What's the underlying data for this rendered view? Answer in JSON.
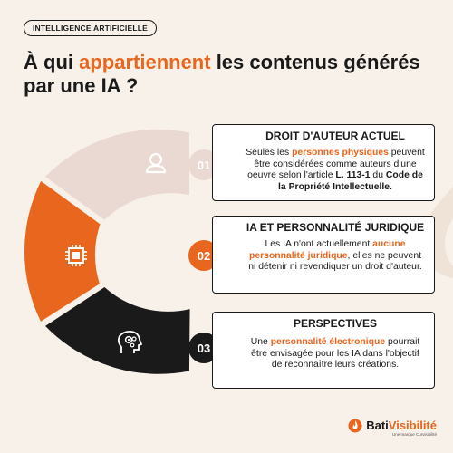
{
  "tag": "INTELLIGENCE ARTIFICIELLE",
  "title": {
    "part1": "À qui ",
    "highlight": "appartiennent",
    "part2": " les contenus générés par une IA ?"
  },
  "segments": [
    {
      "icon": "user-icon",
      "color": "#ead9d2"
    },
    {
      "icon": "chip-icon",
      "color": "#e8661e"
    },
    {
      "icon": "ai-head-icon",
      "color": "#1a1a1a"
    }
  ],
  "cards": [
    {
      "number": "01",
      "title": "DROIT D'AUTEUR ACTUEL",
      "text_a": "Seules les ",
      "text_hl": "personnes physiques",
      "text_b": " peuvent être considérées comme auteurs d'une oeuvre selon l'article ",
      "text_bold1": "L. 113-1",
      "text_c": " du ",
      "text_bold2": "Code de la Propriété Intellectuelle."
    },
    {
      "number": "02",
      "title": "IA ET PERSONNALITÉ JURIDIQUE",
      "text_a": "Les IA n'ont actuellement ",
      "text_hl": "aucune personnalité juridique",
      "text_b": ", elles ne peuvent ni détenir ni revendiquer un droit d'auteur."
    },
    {
      "number": "03",
      "title": "PERSPECTIVES",
      "text_a": "Une ",
      "text_hl": "personnalité électronique",
      "text_b": " pourrait être envisagée pour les IA dans l'objectif de reconnaître leurs créations."
    }
  ],
  "logo": {
    "name_a": "Bati",
    "name_b": "Visibilité",
    "subtitle": "Une marque Curvisibilité"
  }
}
